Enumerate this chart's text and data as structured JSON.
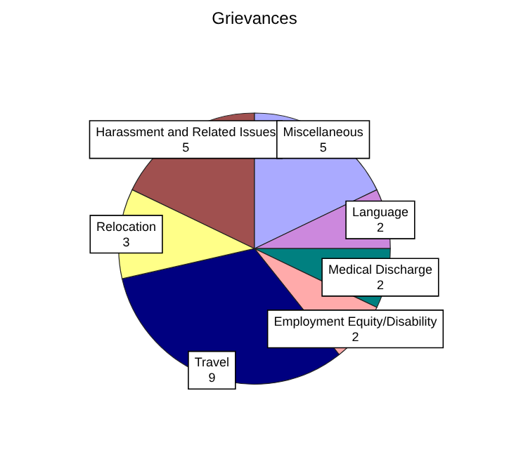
{
  "chart_data": {
    "type": "pie",
    "title": "Grievances",
    "categories": [
      "Harassment and Related Issues",
      "Miscellaneous",
      "Language",
      "Medical Discharge",
      "Employment Equity/Disability",
      "Travel",
      "Relocation"
    ],
    "values": [
      5,
      5,
      2,
      2,
      2,
      9,
      3
    ],
    "colors": [
      "#a0504f",
      "#aaaaff",
      "#cc88dd",
      "#008080",
      "#ffaaaa",
      "#000080",
      "#ffff88"
    ],
    "data_labels": true
  }
}
